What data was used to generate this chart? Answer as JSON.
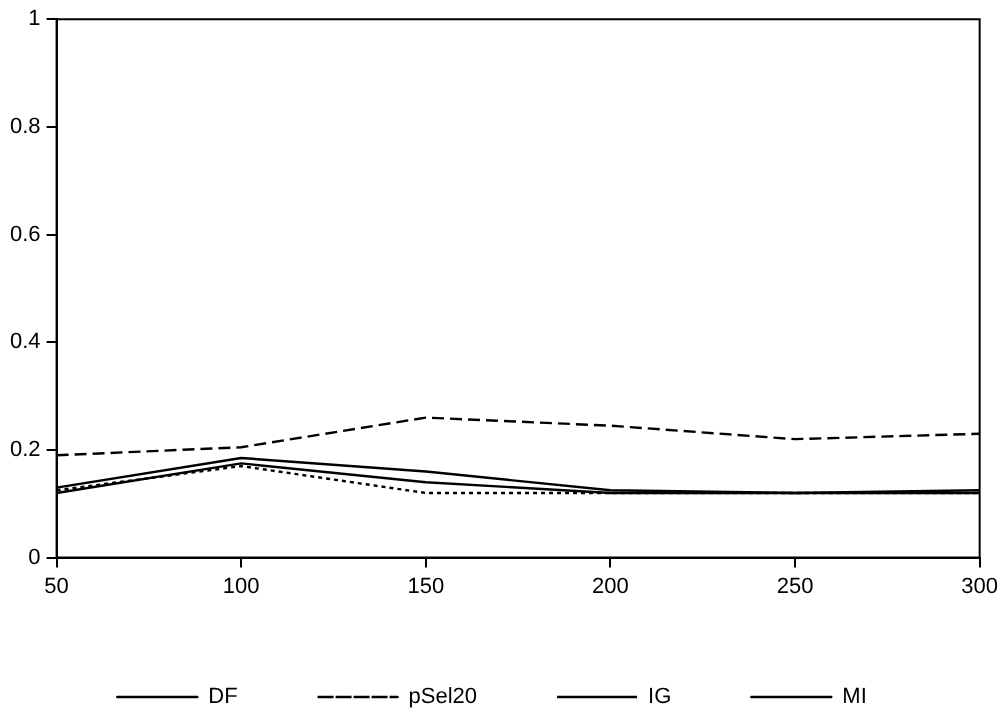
{
  "chart_data": {
    "type": "line",
    "x": [
      50,
      100,
      150,
      200,
      250,
      300
    ],
    "series": [
      {
        "name": "DF",
        "color": "#000000",
        "line_style": "solid",
        "values": [
          0.13,
          0.185,
          0.16,
          0.125,
          0.12,
          0.125
        ]
      },
      {
        "name": "pSel20",
        "color": "#000000",
        "line_style": "dashed",
        "values": [
          0.19,
          0.205,
          0.26,
          0.245,
          0.22,
          0.23
        ]
      },
      {
        "name": "IG",
        "color": "#000000",
        "line_style": "dotted",
        "values": [
          0.125,
          0.17,
          0.12,
          0.12,
          0.12,
          0.12
        ]
      },
      {
        "name": "MI",
        "color": "#000000",
        "line_style": "solid",
        "values": [
          0.12,
          0.175,
          0.14,
          0.12,
          0.12,
          0.12
        ]
      }
    ],
    "xlim": [
      50,
      300
    ],
    "xticks": [
      50,
      100,
      150,
      200,
      250,
      300
    ],
    "ylim": [
      0,
      1
    ],
    "yticks": [
      0,
      0.2,
      0.4,
      0.6,
      0.8,
      1
    ],
    "grid": false,
    "legend": "bottom",
    "marker": "none"
  }
}
